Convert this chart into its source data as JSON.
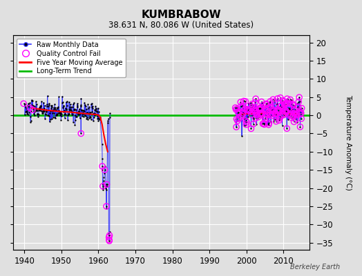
{
  "title": "KUMBRABOW",
  "subtitle": "38.631 N, 80.086 W (United States)",
  "ylabel": "Temperature Anomaly (°C)",
  "xlim": [
    1937,
    2017
  ],
  "ylim": [
    -37,
    22
  ],
  "yticks": [
    -35,
    -30,
    -25,
    -20,
    -15,
    -10,
    -5,
    0,
    5,
    10,
    15,
    20
  ],
  "xticks": [
    1940,
    1950,
    1960,
    1970,
    1980,
    1990,
    2000,
    2010
  ],
  "bg_color": "#e0e0e0",
  "grid_color": "#ffffff",
  "raw_line_color": "#3333ff",
  "raw_dot_color": "#000000",
  "qc_fail_color": "#ff00ff",
  "moving_avg_color": "#ff0000",
  "trend_color": "#00bb00",
  "watermark": "Berkeley Earth",
  "legend_entries": [
    "Raw Monthly Data",
    "Quality Control Fail",
    "Five Year Moving Average",
    "Long-Term Trend"
  ],
  "seed1": 10,
  "seed2": 20
}
